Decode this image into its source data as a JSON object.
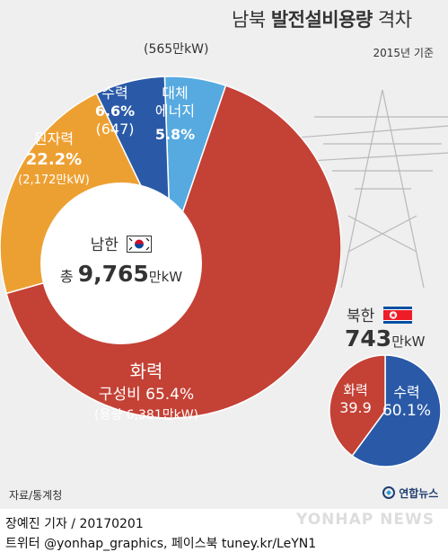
{
  "title_plain": "남북 ",
  "title_bold": "발전설비용량",
  "title_tail": " 격차",
  "subtitle": "2015년 기준",
  "south": {
    "name": "남한",
    "total_prefix": "총 ",
    "total_value": "9,765",
    "total_unit": "만kW"
  },
  "north": {
    "name": "북한",
    "total_value": "743",
    "total_unit": "만kW"
  },
  "labels": {
    "renewable_capacity": "(565만kW)",
    "hydro_name": "수력",
    "hydro_pct": "6.6%",
    "hydro_capacity": "(647)",
    "renewable_name_1": "대체",
    "renewable_name_2": "에너지",
    "renewable_pct": "5.8%",
    "nuclear_name": "원자력",
    "nuclear_pct": "22.2%",
    "nuclear_capacity": "(2,172만kW)",
    "thermal_name": "화력",
    "thermal_share": "구성비 65.4%",
    "thermal_capacity": "(용량 6,381만kW)",
    "north_thermal_name": "화력",
    "north_thermal_pct": "39.9",
    "north_hydro_name": "수력",
    "north_hydro_pct": "60.1%"
  },
  "source": "자료/통계청",
  "brand": "연합뉴스",
  "watermark": "YONHAP NEWS",
  "credit_line_1": "장예진 기자 / 20170201",
  "credit_line_2": "트위터 @yonhap_graphics, 페이스북 tuney.kr/LeYN1",
  "colors": {
    "thermal": "#c44135",
    "nuclear": "#eda032",
    "hydro": "#2a5aa7",
    "renewable": "#56aae0",
    "background": "#efeff0"
  },
  "chart_data": [
    {
      "type": "pie",
      "title": "남한",
      "categories": [
        "대체에너지",
        "화력",
        "원자력",
        "수력"
      ],
      "values": [
        5.8,
        65.4,
        22.2,
        6.6
      ],
      "capacity": {
        "대체에너지": 565,
        "화력": 6381,
        "원자력": 2172,
        "수력": 647
      },
      "capacity_unit": "만kW",
      "total": 9765
    },
    {
      "type": "pie",
      "title": "북한",
      "categories": [
        "수력",
        "화력"
      ],
      "values": [
        60.1,
        39.9
      ],
      "total": 743
    }
  ]
}
